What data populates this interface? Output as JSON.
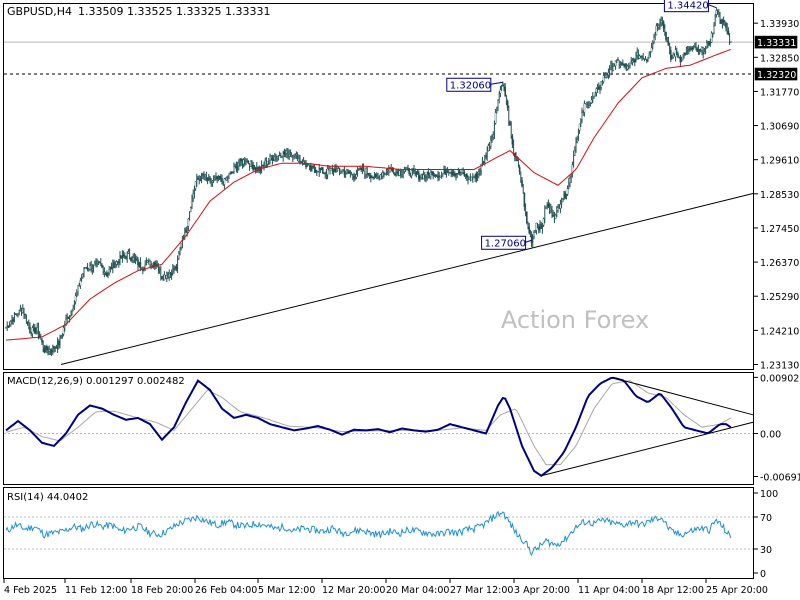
{
  "header": {
    "symbol": "GBPUSD,H4",
    "ohlc": "1.33509 1.33525 1.33325 1.33331"
  },
  "colors": {
    "candle": "#1f4e4e",
    "ma": "#d01010",
    "trendline": "#000000",
    "macd_line": "#000080",
    "signal_line": "#a8a8a8",
    "rsi_line": "#2090d0",
    "label_box": "#000080",
    "grid": "#b8b8b8",
    "watermark": "#c0c0c0"
  },
  "watermark": "Action Forex",
  "chart_data": [
    {
      "type": "candlestick",
      "panel": "price",
      "symbol": "GBPUSD",
      "timeframe": "H4",
      "ylim": [
        1.2305,
        1.3441
      ],
      "y_ticks": [
        "1.33930",
        "1.32850",
        "1.31770",
        "1.30690",
        "1.29610",
        "1.28530",
        "1.27450",
        "1.26370",
        "1.25290",
        "1.24210",
        "1.23130"
      ],
      "x_ticks": [
        "4 Feb 2025",
        "11 Feb 12:00",
        "18 Feb 20:00",
        "26 Feb 04:00",
        "5 Mar 12:00",
        "12 Mar 20:00",
        "20 Mar 04:00",
        "27 Mar 12:00",
        "3 Apr 20:00",
        "11 Apr 04:00",
        "18 Apr 12:00",
        "25 Apr 20:00"
      ],
      "last_price": "1.33331",
      "reference_level": "1.32320",
      "annotations": [
        "1.34420",
        "1.32060",
        "1.27060"
      ],
      "close_anchors": [
        [
          0,
          1.243
        ],
        [
          8,
          1.247
        ],
        [
          14,
          1.249
        ],
        [
          20,
          1.242
        ],
        [
          26,
          1.242
        ],
        [
          32,
          1.236
        ],
        [
          38,
          1.236
        ],
        [
          44,
          1.238
        ],
        [
          50,
          1.245
        ],
        [
          56,
          1.25
        ],
        [
          62,
          1.258
        ],
        [
          66,
          1.262
        ],
        [
          72,
          1.262
        ],
        [
          78,
          1.263
        ],
        [
          84,
          1.26
        ],
        [
          90,
          1.263
        ],
        [
          96,
          1.265
        ],
        [
          102,
          1.266
        ],
        [
          108,
          1.264
        ],
        [
          114,
          1.262
        ],
        [
          120,
          1.264
        ],
        [
          126,
          1.263
        ],
        [
          130,
          1.259
        ],
        [
          136,
          1.26
        ],
        [
          142,
          1.262
        ],
        [
          146,
          1.27
        ],
        [
          150,
          1.274
        ],
        [
          154,
          1.282
        ],
        [
          158,
          1.289
        ],
        [
          164,
          1.291
        ],
        [
          170,
          1.289
        ],
        [
          176,
          1.29
        ],
        [
          182,
          1.289
        ],
        [
          188,
          1.292
        ],
        [
          194,
          1.295
        ],
        [
          200,
          1.296
        ],
        [
          206,
          1.294
        ],
        [
          212,
          1.293
        ],
        [
          218,
          1.296
        ],
        [
          224,
          1.297
        ],
        [
          230,
          1.298
        ],
        [
          236,
          1.298
        ],
        [
          242,
          1.297
        ],
        [
          248,
          1.295
        ],
        [
          254,
          1.293
        ],
        [
          260,
          1.293
        ],
        [
          266,
          1.292
        ],
        [
          272,
          1.293
        ],
        [
          278,
          1.293
        ],
        [
          284,
          1.292
        ],
        [
          290,
          1.291
        ],
        [
          296,
          1.293
        ],
        [
          302,
          1.292
        ],
        [
          308,
          1.29
        ],
        [
          314,
          1.292
        ],
        [
          320,
          1.293
        ],
        [
          326,
          1.292
        ],
        [
          332,
          1.293
        ],
        [
          338,
          1.292
        ],
        [
          344,
          1.291
        ],
        [
          350,
          1.291
        ],
        [
          356,
          1.292
        ],
        [
          362,
          1.291
        ],
        [
          368,
          1.293
        ],
        [
          374,
          1.292
        ],
        [
          380,
          1.292
        ],
        [
          386,
          1.29
        ],
        [
          392,
          1.291
        ],
        [
          396,
          1.294
        ],
        [
          402,
          1.3
        ],
        [
          406,
          1.305
        ],
        [
          410,
          1.316
        ],
        [
          414,
          1.3206
        ],
        [
          418,
          1.312
        ],
        [
          422,
          1.3
        ],
        [
          426,
          1.295
        ],
        [
          430,
          1.288
        ],
        [
          434,
          1.276
        ],
        [
          438,
          1.2706
        ],
        [
          442,
          1.276
        ],
        [
          446,
          1.274
        ],
        [
          450,
          1.282
        ],
        [
          454,
          1.28
        ],
        [
          458,
          1.278
        ],
        [
          462,
          1.283
        ],
        [
          466,
          1.285
        ],
        [
          470,
          1.29
        ],
        [
          474,
          1.3
        ],
        [
          478,
          1.307
        ],
        [
          482,
          1.313
        ],
        [
          486,
          1.314
        ],
        [
          490,
          1.316
        ],
        [
          494,
          1.319
        ],
        [
          498,
          1.322
        ],
        [
          502,
          1.324
        ],
        [
          506,
          1.326
        ],
        [
          510,
          1.327
        ],
        [
          514,
          1.326
        ],
        [
          518,
          1.325
        ],
        [
          522,
          1.327
        ],
        [
          526,
          1.329
        ],
        [
          530,
          1.329
        ],
        [
          534,
          1.328
        ],
        [
          538,
          1.332
        ],
        [
          542,
          1.338
        ],
        [
          546,
          1.341
        ],
        [
          550,
          1.335
        ],
        [
          554,
          1.328
        ],
        [
          558,
          1.33
        ],
        [
          562,
          1.328
        ],
        [
          566,
          1.33
        ],
        [
          570,
          1.331
        ],
        [
          574,
          1.331
        ],
        [
          578,
          1.33
        ],
        [
          582,
          1.331
        ],
        [
          586,
          1.333
        ],
        [
          590,
          1.338
        ],
        [
          592,
          1.3442
        ],
        [
          596,
          1.34
        ],
        [
          600,
          1.338
        ],
        [
          604,
          1.333
        ]
      ],
      "moving_average_anchors": [
        [
          0,
          1.239
        ],
        [
          30,
          1.24
        ],
        [
          50,
          1.244
        ],
        [
          70,
          1.252
        ],
        [
          90,
          1.257
        ],
        [
          110,
          1.261
        ],
        [
          130,
          1.263
        ],
        [
          150,
          1.272
        ],
        [
          170,
          1.283
        ],
        [
          190,
          1.289
        ],
        [
          210,
          1.293
        ],
        [
          230,
          1.295
        ],
        [
          250,
          1.295
        ],
        [
          270,
          1.294
        ],
        [
          300,
          1.294
        ],
        [
          330,
          1.293
        ],
        [
          360,
          1.293
        ],
        [
          390,
          1.293
        ],
        [
          405,
          1.296
        ],
        [
          420,
          1.299
        ],
        [
          440,
          1.292
        ],
        [
          460,
          1.288
        ],
        [
          475,
          1.293
        ],
        [
          490,
          1.303
        ],
        [
          510,
          1.314
        ],
        [
          530,
          1.322
        ],
        [
          550,
          1.325
        ],
        [
          570,
          1.326
        ],
        [
          590,
          1.329
        ],
        [
          604,
          1.331
        ]
      ],
      "trendline": [
        [
          0,
          1.2313
        ],
        [
          604,
          1.2854
        ]
      ],
      "bar_count": 605
    },
    {
      "type": "line",
      "panel": "macd",
      "label": "MACD(12,26,9) 0.001297 0.002482",
      "ylim": [
        -0.0078,
        0.0094
      ],
      "y_ticks": [
        "0.00902",
        "0.00",
        "-0.006915"
      ],
      "macd_anchors": [
        [
          0,
          0.0005
        ],
        [
          10,
          0.002
        ],
        [
          20,
          0.0005
        ],
        [
          30,
          -0.0015
        ],
        [
          40,
          -0.002
        ],
        [
          50,
          0.0
        ],
        [
          60,
          0.003
        ],
        [
          70,
          0.0045
        ],
        [
          80,
          0.004
        ],
        [
          90,
          0.003
        ],
        [
          100,
          0.0022
        ],
        [
          110,
          0.0025
        ],
        [
          120,
          0.0015
        ],
        [
          130,
          -0.001
        ],
        [
          140,
          0.001
        ],
        [
          150,
          0.005
        ],
        [
          160,
          0.0085
        ],
        [
          170,
          0.007
        ],
        [
          180,
          0.004
        ],
        [
          190,
          0.0025
        ],
        [
          200,
          0.003
        ],
        [
          210,
          0.0025
        ],
        [
          220,
          0.0015
        ],
        [
          230,
          0.001
        ],
        [
          240,
          0.0005
        ],
        [
          250,
          0.0008
        ],
        [
          260,
          0.0012
        ],
        [
          270,
          0.0006
        ],
        [
          280,
          -0.0002
        ],
        [
          290,
          0.0006
        ],
        [
          300,
          0.0005
        ],
        [
          310,
          0.0007
        ],
        [
          320,
          0.0002
        ],
        [
          330,
          0.0008
        ],
        [
          340,
          0.0005
        ],
        [
          350,
          0.0003
        ],
        [
          360,
          0.0006
        ],
        [
          370,
          0.0015
        ],
        [
          380,
          0.001
        ],
        [
          390,
          0.0005
        ],
        [
          400,
          0.0
        ],
        [
          410,
          0.0045
        ],
        [
          415,
          0.006
        ],
        [
          420,
          0.004
        ],
        [
          430,
          -0.002
        ],
        [
          440,
          -0.006
        ],
        [
          446,
          -0.0068
        ],
        [
          455,
          -0.0055
        ],
        [
          465,
          -0.003
        ],
        [
          475,
          0.001
        ],
        [
          485,
          0.006
        ],
        [
          495,
          0.008
        ],
        [
          505,
          0.009
        ],
        [
          515,
          0.0085
        ],
        [
          525,
          0.006
        ],
        [
          535,
          0.005
        ],
        [
          545,
          0.0065
        ],
        [
          555,
          0.004
        ],
        [
          565,
          0.001
        ],
        [
          575,
          0.0005
        ],
        [
          585,
          0.0
        ],
        [
          595,
          0.0015
        ],
        [
          600,
          0.0015
        ],
        [
          604,
          0.001
        ]
      ],
      "signal_anchors": [
        [
          0,
          0.0002
        ],
        [
          15,
          0.001
        ],
        [
          30,
          -0.0005
        ],
        [
          45,
          -0.0012
        ],
        [
          60,
          0.001
        ],
        [
          75,
          0.0035
        ],
        [
          90,
          0.0036
        ],
        [
          110,
          0.0025
        ],
        [
          125,
          0.0018
        ],
        [
          140,
          0.0005
        ],
        [
          155,
          0.004
        ],
        [
          168,
          0.007
        ],
        [
          180,
          0.0058
        ],
        [
          195,
          0.0035
        ],
        [
          215,
          0.0025
        ],
        [
          235,
          0.0012
        ],
        [
          260,
          0.0009
        ],
        [
          280,
          0.0003
        ],
        [
          300,
          0.0004
        ],
        [
          330,
          0.0005
        ],
        [
          360,
          0.0005
        ],
        [
          380,
          0.0009
        ],
        [
          400,
          0.0005
        ],
        [
          412,
          0.003
        ],
        [
          425,
          0.004
        ],
        [
          440,
          -0.002
        ],
        [
          450,
          -0.005
        ],
        [
          462,
          -0.005
        ],
        [
          475,
          -0.002
        ],
        [
          490,
          0.004
        ],
        [
          505,
          0.008
        ],
        [
          520,
          0.0085
        ],
        [
          535,
          0.0065
        ],
        [
          550,
          0.0058
        ],
        [
          565,
          0.003
        ],
        [
          580,
          0.001
        ],
        [
          595,
          0.0015
        ],
        [
          604,
          0.0025
        ]
      ],
      "triangle_upper": [
        [
          505,
          0.009
        ],
        [
          604,
          0.003
        ]
      ],
      "triangle_lower": [
        [
          446,
          -0.0068
        ],
        [
          604,
          0.0018
        ]
      ]
    },
    {
      "type": "line",
      "panel": "rsi",
      "label": "RSI(14) 44.0402",
      "ylim": [
        0,
        100
      ],
      "y_ticks": [
        "100",
        "70",
        "30",
        "0"
      ],
      "levels": [
        70,
        30
      ],
      "rsi_anchors": [
        [
          0,
          52
        ],
        [
          8,
          60
        ],
        [
          16,
          55
        ],
        [
          24,
          58
        ],
        [
          32,
          48
        ],
        [
          40,
          50
        ],
        [
          48,
          52
        ],
        [
          56,
          58
        ],
        [
          64,
          55
        ],
        [
          72,
          62
        ],
        [
          80,
          58
        ],
        [
          88,
          60
        ],
        [
          96,
          52
        ],
        [
          104,
          56
        ],
        [
          112,
          58
        ],
        [
          120,
          50
        ],
        [
          128,
          48
        ],
        [
          136,
          54
        ],
        [
          144,
          62
        ],
        [
          152,
          66
        ],
        [
          160,
          70
        ],
        [
          168,
          64
        ],
        [
          176,
          60
        ],
        [
          184,
          64
        ],
        [
          192,
          60
        ],
        [
          200,
          58
        ],
        [
          208,
          62
        ],
        [
          216,
          60
        ],
        [
          224,
          55
        ],
        [
          232,
          58
        ],
        [
          240,
          52
        ],
        [
          248,
          56
        ],
        [
          256,
          54
        ],
        [
          264,
          52
        ],
        [
          272,
          56
        ],
        [
          280,
          50
        ],
        [
          288,
          52
        ],
        [
          296,
          54
        ],
        [
          304,
          50
        ],
        [
          312,
          48
        ],
        [
          320,
          52
        ],
        [
          328,
          50
        ],
        [
          336,
          54
        ],
        [
          344,
          52
        ],
        [
          352,
          50
        ],
        [
          360,
          48
        ],
        [
          368,
          52
        ],
        [
          376,
          50
        ],
        [
          384,
          54
        ],
        [
          392,
          56
        ],
        [
          400,
          62
        ],
        [
          408,
          72
        ],
        [
          414,
          76
        ],
        [
          420,
          62
        ],
        [
          426,
          48
        ],
        [
          432,
          40
        ],
        [
          438,
          26
        ],
        [
          444,
          32
        ],
        [
          450,
          40
        ],
        [
          458,
          35
        ],
        [
          466,
          42
        ],
        [
          474,
          56
        ],
        [
          482,
          64
        ],
        [
          490,
          62
        ],
        [
          498,
          66
        ],
        [
          506,
          62
        ],
        [
          514,
          60
        ],
        [
          522,
          64
        ],
        [
          530,
          60
        ],
        [
          538,
          66
        ],
        [
          546,
          70
        ],
        [
          554,
          52
        ],
        [
          562,
          48
        ],
        [
          570,
          52
        ],
        [
          578,
          56
        ],
        [
          586,
          54
        ],
        [
          592,
          66
        ],
        [
          598,
          56
        ],
        [
          604,
          44
        ]
      ]
    }
  ]
}
